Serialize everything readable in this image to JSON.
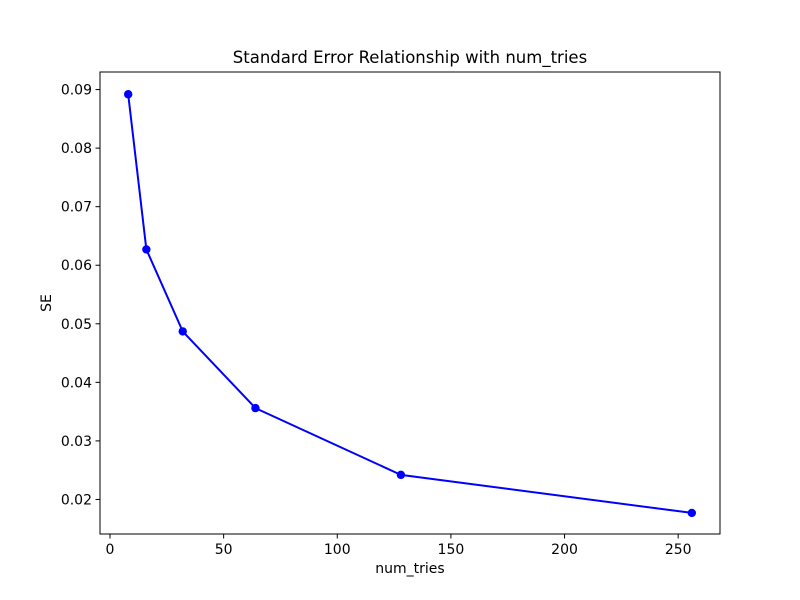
{
  "figure": {
    "background": "#ffffff",
    "accent_color": "#0000ff",
    "spine_color": "#000000"
  },
  "chart_data": {
    "type": "line",
    "title": "Standard Error Relationship with num_tries",
    "xlabel": "num_tries",
    "ylabel": "SE",
    "x": [
      8,
      16,
      32,
      64,
      128,
      256
    ],
    "y": [
      0.0892,
      0.0627,
      0.0487,
      0.0356,
      0.0242,
      0.0177
    ],
    "series": [
      {
        "name": "SE",
        "color": "#0000ff",
        "marker": "o"
      }
    ],
    "xticks": [
      0,
      50,
      100,
      150,
      200,
      250
    ],
    "xtick_labels": [
      "0",
      "50",
      "100",
      "150",
      "200",
      "250"
    ],
    "yticks": [
      0.02,
      0.03,
      0.04,
      0.05,
      0.06,
      0.07,
      0.08,
      0.09
    ],
    "ytick_labels": [
      "0.02",
      "0.03",
      "0.04",
      "0.05",
      "0.06",
      "0.07",
      "0.08",
      "0.09"
    ],
    "xlim": [
      -4.4,
      268.4
    ],
    "ylim": [
      0.0141,
      0.093
    ],
    "grid": false,
    "legend": "none",
    "line_color": "#0000ff",
    "marker_color": "#0000ff",
    "background": "#ffffff"
  }
}
